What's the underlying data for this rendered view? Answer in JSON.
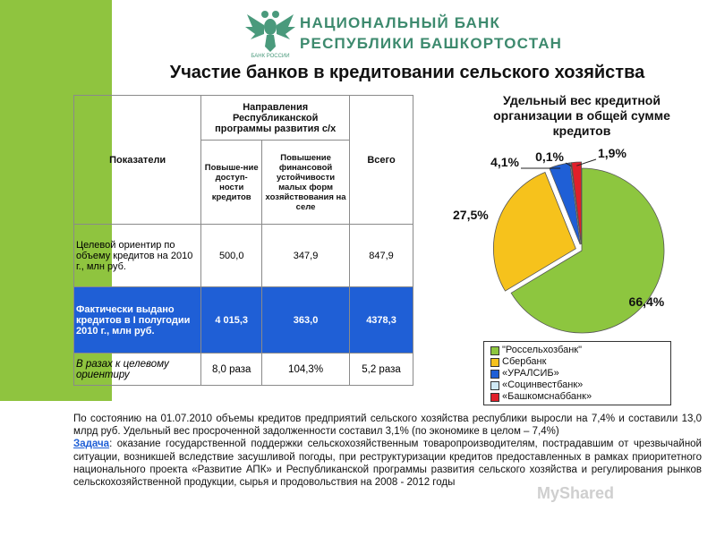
{
  "header": {
    "bank_name_line1": "НАЦИОНАЛЬНЫЙ БАНК",
    "bank_name_line2": "РЕСПУБЛИКИ БАШКОРТОСТАН",
    "logo_text": "БАНК РОССИИ"
  },
  "page_title": "Участие банков в кредитовании сельского хозяйства",
  "table": {
    "col_indicators": "Показатели",
    "col_directions": "Направления Республиканской программы развития с/х",
    "col_sub1": "Повыше-ние доступ-ности кредитов",
    "col_sub2": "Повышение финансовой устойчивости малых форм хозяйствования на селе",
    "col_total": "Всего",
    "rows": [
      {
        "label": "Целевой ориентир по объему кредитов на 2010 г., млн руб.",
        "v1": "500,0",
        "v2": "347,9",
        "v3": "847,9"
      },
      {
        "label": "Фактически выдано кредитов в I полугодии 2010 г., млн руб.",
        "v1": "4 015,3",
        "v2": "363,0",
        "v3": "4378,3"
      },
      {
        "label": "В разах к целевому ориентиру",
        "v1": "8,0 раза",
        "v2": "104,3%",
        "v3": "5,2 раза"
      }
    ]
  },
  "chart_data": {
    "type": "pie",
    "title": "Удельный вес кредитной организации в общей сумме кредитов",
    "series": [
      {
        "name": "\"Россельхозбанк\"",
        "value": 66.4,
        "label": "66,4%",
        "color": "#8dc63f"
      },
      {
        "name": "Сбербанк",
        "value": 27.5,
        "label": "27,5%",
        "color": "#f6c21c"
      },
      {
        "name": "«УРАЛСИБ»",
        "value": 4.1,
        "label": "4,1%",
        "color": "#1f5fd6"
      },
      {
        "name": "«Социнвестбанк»",
        "value": 0.1,
        "label": "0,1%",
        "color": "#cfe9f5"
      },
      {
        "name": "«Башкомснаббанк»",
        "value": 1.9,
        "label": "1,9%",
        "color": "#e0202a"
      }
    ],
    "legend_position": "bottom"
  },
  "paragraph": {
    "text1": "По состоянию на 01.07.2010 объемы кредитов предприятий сельского хозяйства республики выросли на 7,4% и составили 13,0 млрд руб. Удельный вес просроченной задолженности составил 3,1% (по экономике в целом – 7,4%)",
    "task_label": "Задача",
    "text2": ": оказание государственной поддержки сельскохозяйственным товаропроизводителям, пострадавшим от чрезвычайной ситуации, возникшей вследствие засушливой погоды, при реструктуризации кредитов предоставленных в рамках приоритетного национального проекта «Развитие АПК» и Республиканской программы развития сельского хозяйства и регулирования рынков сельскохозяйственной продукции, сырья и продовольствия на 2008 - 2012 годы"
  },
  "watermark": "MyShared"
}
